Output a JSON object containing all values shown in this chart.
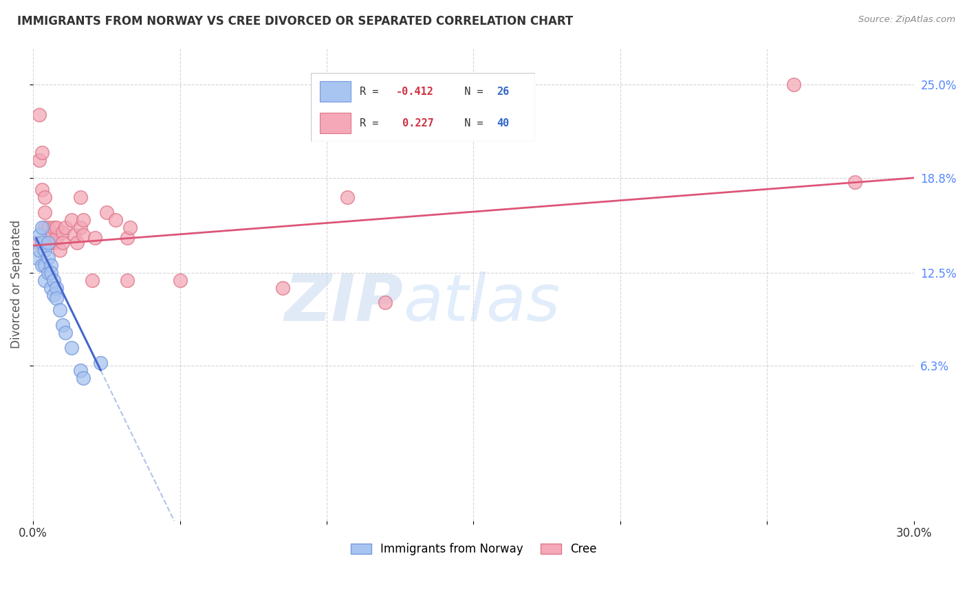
{
  "title": "IMMIGRANTS FROM NORWAY VS CREE DIVORCED OR SEPARATED CORRELATION CHART",
  "source": "Source: ZipAtlas.com",
  "ylabel": "Divorced or Separated",
  "ytick_labels": [
    "6.3%",
    "12.5%",
    "18.8%",
    "25.0%"
  ],
  "ytick_values": [
    0.063,
    0.125,
    0.188,
    0.25
  ],
  "xmin": 0.0,
  "xmax": 0.3,
  "ymin": -0.04,
  "ymax": 0.275,
  "legend_label_blue": "Immigrants from Norway",
  "legend_label_pink": "Cree",
  "blue_color": "#a8c4f0",
  "pink_color": "#f4a8b8",
  "blue_edge_color": "#7799dd",
  "pink_edge_color": "#dd7788",
  "blue_trend_color": "#4466cc",
  "pink_trend_color": "#dd5577",
  "watermark_zip": "ZIP",
  "watermark_atlas": "atlas",
  "norway_x": [
    0.001,
    0.002,
    0.002,
    0.003,
    0.003,
    0.003,
    0.004,
    0.004,
    0.004,
    0.005,
    0.005,
    0.005,
    0.006,
    0.006,
    0.006,
    0.007,
    0.007,
    0.008,
    0.008,
    0.009,
    0.01,
    0.011,
    0.013,
    0.016,
    0.017,
    0.023
  ],
  "norway_y": [
    0.135,
    0.15,
    0.14,
    0.155,
    0.145,
    0.13,
    0.14,
    0.13,
    0.12,
    0.145,
    0.135,
    0.125,
    0.13,
    0.125,
    0.115,
    0.12,
    0.11,
    0.115,
    0.108,
    0.1,
    0.09,
    0.085,
    0.075,
    0.06,
    0.055,
    0.065
  ],
  "cree_x": [
    0.001,
    0.002,
    0.002,
    0.003,
    0.003,
    0.004,
    0.004,
    0.004,
    0.005,
    0.005,
    0.006,
    0.006,
    0.007,
    0.007,
    0.008,
    0.008,
    0.009,
    0.01,
    0.01,
    0.011,
    0.013,
    0.014,
    0.015,
    0.016,
    0.016,
    0.017,
    0.017,
    0.02,
    0.021,
    0.025,
    0.028,
    0.032,
    0.032,
    0.033,
    0.05,
    0.085,
    0.107,
    0.12,
    0.259,
    0.28
  ],
  "cree_y": [
    0.145,
    0.23,
    0.2,
    0.205,
    0.18,
    0.165,
    0.175,
    0.155,
    0.155,
    0.145,
    0.145,
    0.15,
    0.155,
    0.145,
    0.148,
    0.155,
    0.14,
    0.152,
    0.145,
    0.155,
    0.16,
    0.15,
    0.145,
    0.175,
    0.155,
    0.15,
    0.16,
    0.12,
    0.148,
    0.165,
    0.16,
    0.148,
    0.12,
    0.155,
    0.12,
    0.115,
    0.175,
    0.105,
    0.25,
    0.185
  ],
  "blue_trend_x0": 0.001,
  "blue_trend_x1": 0.023,
  "blue_trend_y0": 0.148,
  "blue_trend_y1": 0.06,
  "pink_trend_x0": 0.0,
  "pink_trend_x1": 0.3,
  "pink_trend_y0": 0.143,
  "pink_trend_y1": 0.188
}
